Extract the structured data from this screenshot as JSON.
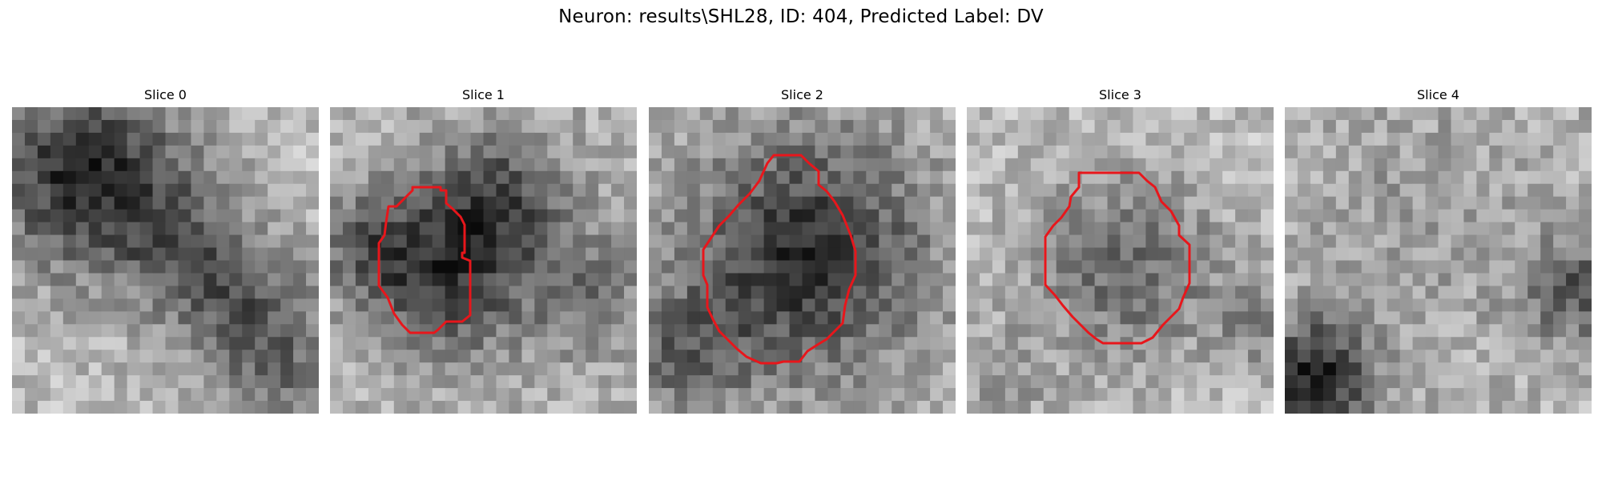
{
  "figure": {
    "title": "Neuron: results\\SHL28, ID: 404, Predicted Label: DV",
    "contour_color": "#e8161b",
    "slices": [
      {
        "label": "Slice 0",
        "has_contour": false
      },
      {
        "label": "Slice 1",
        "has_contour": true
      },
      {
        "label": "Slice 2",
        "has_contour": true
      },
      {
        "label": "Slice 3",
        "has_contour": true
      },
      {
        "label": "Slice 4",
        "has_contour": false
      }
    ]
  }
}
